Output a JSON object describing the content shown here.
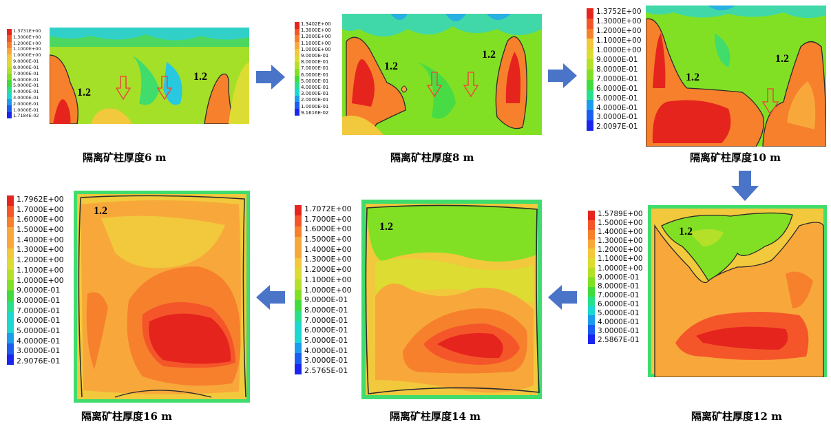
{
  "panels": [
    {
      "id": "6m",
      "caption": "隔离矿柱厚度6 m",
      "legend": [
        "1.3731E+00",
        "1.3000E+00",
        "1.2000E+00",
        "1.1000E+00",
        "1.0000E+00",
        "9.0000E-01",
        "8.0000E-01",
        "7.0000E-01",
        "6.0000E-01",
        "5.0000E-01",
        "4.0000E-01",
        "3.0000E-01",
        "2.0000E-01",
        "1.0000E-01",
        "1.7184E-02"
      ],
      "contour_labels": [
        "1.2",
        "1.2"
      ]
    },
    {
      "id": "8m",
      "caption": "隔离矿柱厚度8 m",
      "legend": [
        "1.3402E+00",
        "1.3000E+00",
        "1.2000E+00",
        "1.1000E+00",
        "1.0000E+00",
        "9.0000E-01",
        "8.0000E-01",
        "7.0000E-01",
        "6.0000E-01",
        "5.0000E-01",
        "4.0000E-01",
        "3.0000E-01",
        "2.0000E-01",
        "1.0000E-01",
        "9.1616E-02"
      ],
      "contour_labels": [
        "1.2",
        "1.2"
      ]
    },
    {
      "id": "10m",
      "caption": "隔离矿柱厚度10 m",
      "legend": [
        "1.3752E+00",
        "1.3000E+00",
        "1.2000E+00",
        "1.1000E+00",
        "1.0000E+00",
        "9.0000E-01",
        "8.0000E-01",
        "7.0000E-01",
        "6.0000E-01",
        "5.0000E-01",
        "4.0000E-01",
        "3.0000E-01",
        "2.0097E-01"
      ],
      "contour_labels": [
        "1.2",
        "1.2"
      ]
    },
    {
      "id": "12m",
      "caption": "隔离矿柱厚度12 m",
      "legend": [
        "1.5789E+00",
        "1.5000E+00",
        "1.4000E+00",
        "1.3000E+00",
        "1.2000E+00",
        "1.1000E+00",
        "1.0000E+00",
        "9.0000E-01",
        "8.0000E-01",
        "7.0000E-01",
        "6.0000E-01",
        "5.0000E-01",
        "4.0000E-01",
        "3.0000E-01",
        "2.5867E-01"
      ],
      "contour_labels": [
        "1.2"
      ]
    },
    {
      "id": "14m",
      "caption": "隔离矿柱厚度14 m",
      "legend": [
        "1.7072E+00",
        "1.7000E+00",
        "1.6000E+00",
        "1.5000E+00",
        "1.4000E+00",
        "1.3000E+00",
        "1.2000E+00",
        "1.1000E+00",
        "1.0000E+00",
        "9.0000E-01",
        "8.0000E-01",
        "7.0000E-01",
        "6.0000E-01",
        "5.0000E-01",
        "4.0000E-01",
        "3.0000E-01",
        "2.5765E-01"
      ],
      "contour_labels": [
        "1.2"
      ]
    },
    {
      "id": "16m",
      "caption": "隔离矿柱厚度16 m",
      "legend": [
        "1.7962E+00",
        "1.7000E+00",
        "1.6000E+00",
        "1.5000E+00",
        "1.4000E+00",
        "1.3000E+00",
        "1.2000E+00",
        "1.1000E+00",
        "1.0000E+00",
        "9.0000E-01",
        "8.0000E-01",
        "7.0000E-01",
        "6.0000E-01",
        "5.0000E-01",
        "4.0000E-01",
        "3.0000E-01",
        "2.9076E-01"
      ],
      "contour_labels": [
        "1.2"
      ]
    }
  ],
  "colors": {
    "arrow": "#4a74c8",
    "down_marker": "#e8503a",
    "contour_line": "#2a2a2a"
  },
  "colorbar": [
    "#e6241e",
    "#f4562a",
    "#f6802c",
    "#f8a83a",
    "#f2c83c",
    "#dcdc32",
    "#b4e02a",
    "#82e024",
    "#40dc3c",
    "#28e08c",
    "#1cd8d0",
    "#1c9cec",
    "#1c5cf0",
    "#1c24f0"
  ]
}
